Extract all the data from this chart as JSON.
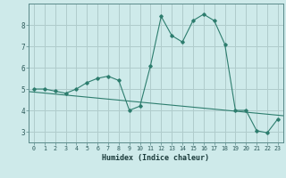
{
  "xlabel": "Humidex (Indice chaleur)",
  "x": [
    0,
    1,
    2,
    3,
    4,
    5,
    6,
    7,
    8,
    9,
    10,
    11,
    12,
    13,
    14,
    15,
    16,
    17,
    18,
    19,
    20,
    21,
    22,
    23
  ],
  "y_curve": [
    5.0,
    5.0,
    4.9,
    4.8,
    5.0,
    5.3,
    5.5,
    5.6,
    5.4,
    4.0,
    4.2,
    6.1,
    8.4,
    7.5,
    7.2,
    8.2,
    8.5,
    8.2,
    7.1,
    4.0,
    4.0,
    3.05,
    2.95,
    3.6
  ],
  "y_trend_start": 4.88,
  "y_trend_end": 3.75,
  "line_color": "#2d7d6e",
  "bg_color": "#ceeaea",
  "grid_color": "#b0cccc",
  "ylim": [
    2.5,
    9.0
  ],
  "xlim": [
    -0.5,
    23.5
  ],
  "yticks": [
    3,
    4,
    5,
    6,
    7,
    8
  ],
  "xticks": [
    0,
    1,
    2,
    3,
    4,
    5,
    6,
    7,
    8,
    9,
    10,
    11,
    12,
    13,
    14,
    15,
    16,
    17,
    18,
    19,
    20,
    21,
    22,
    23
  ]
}
